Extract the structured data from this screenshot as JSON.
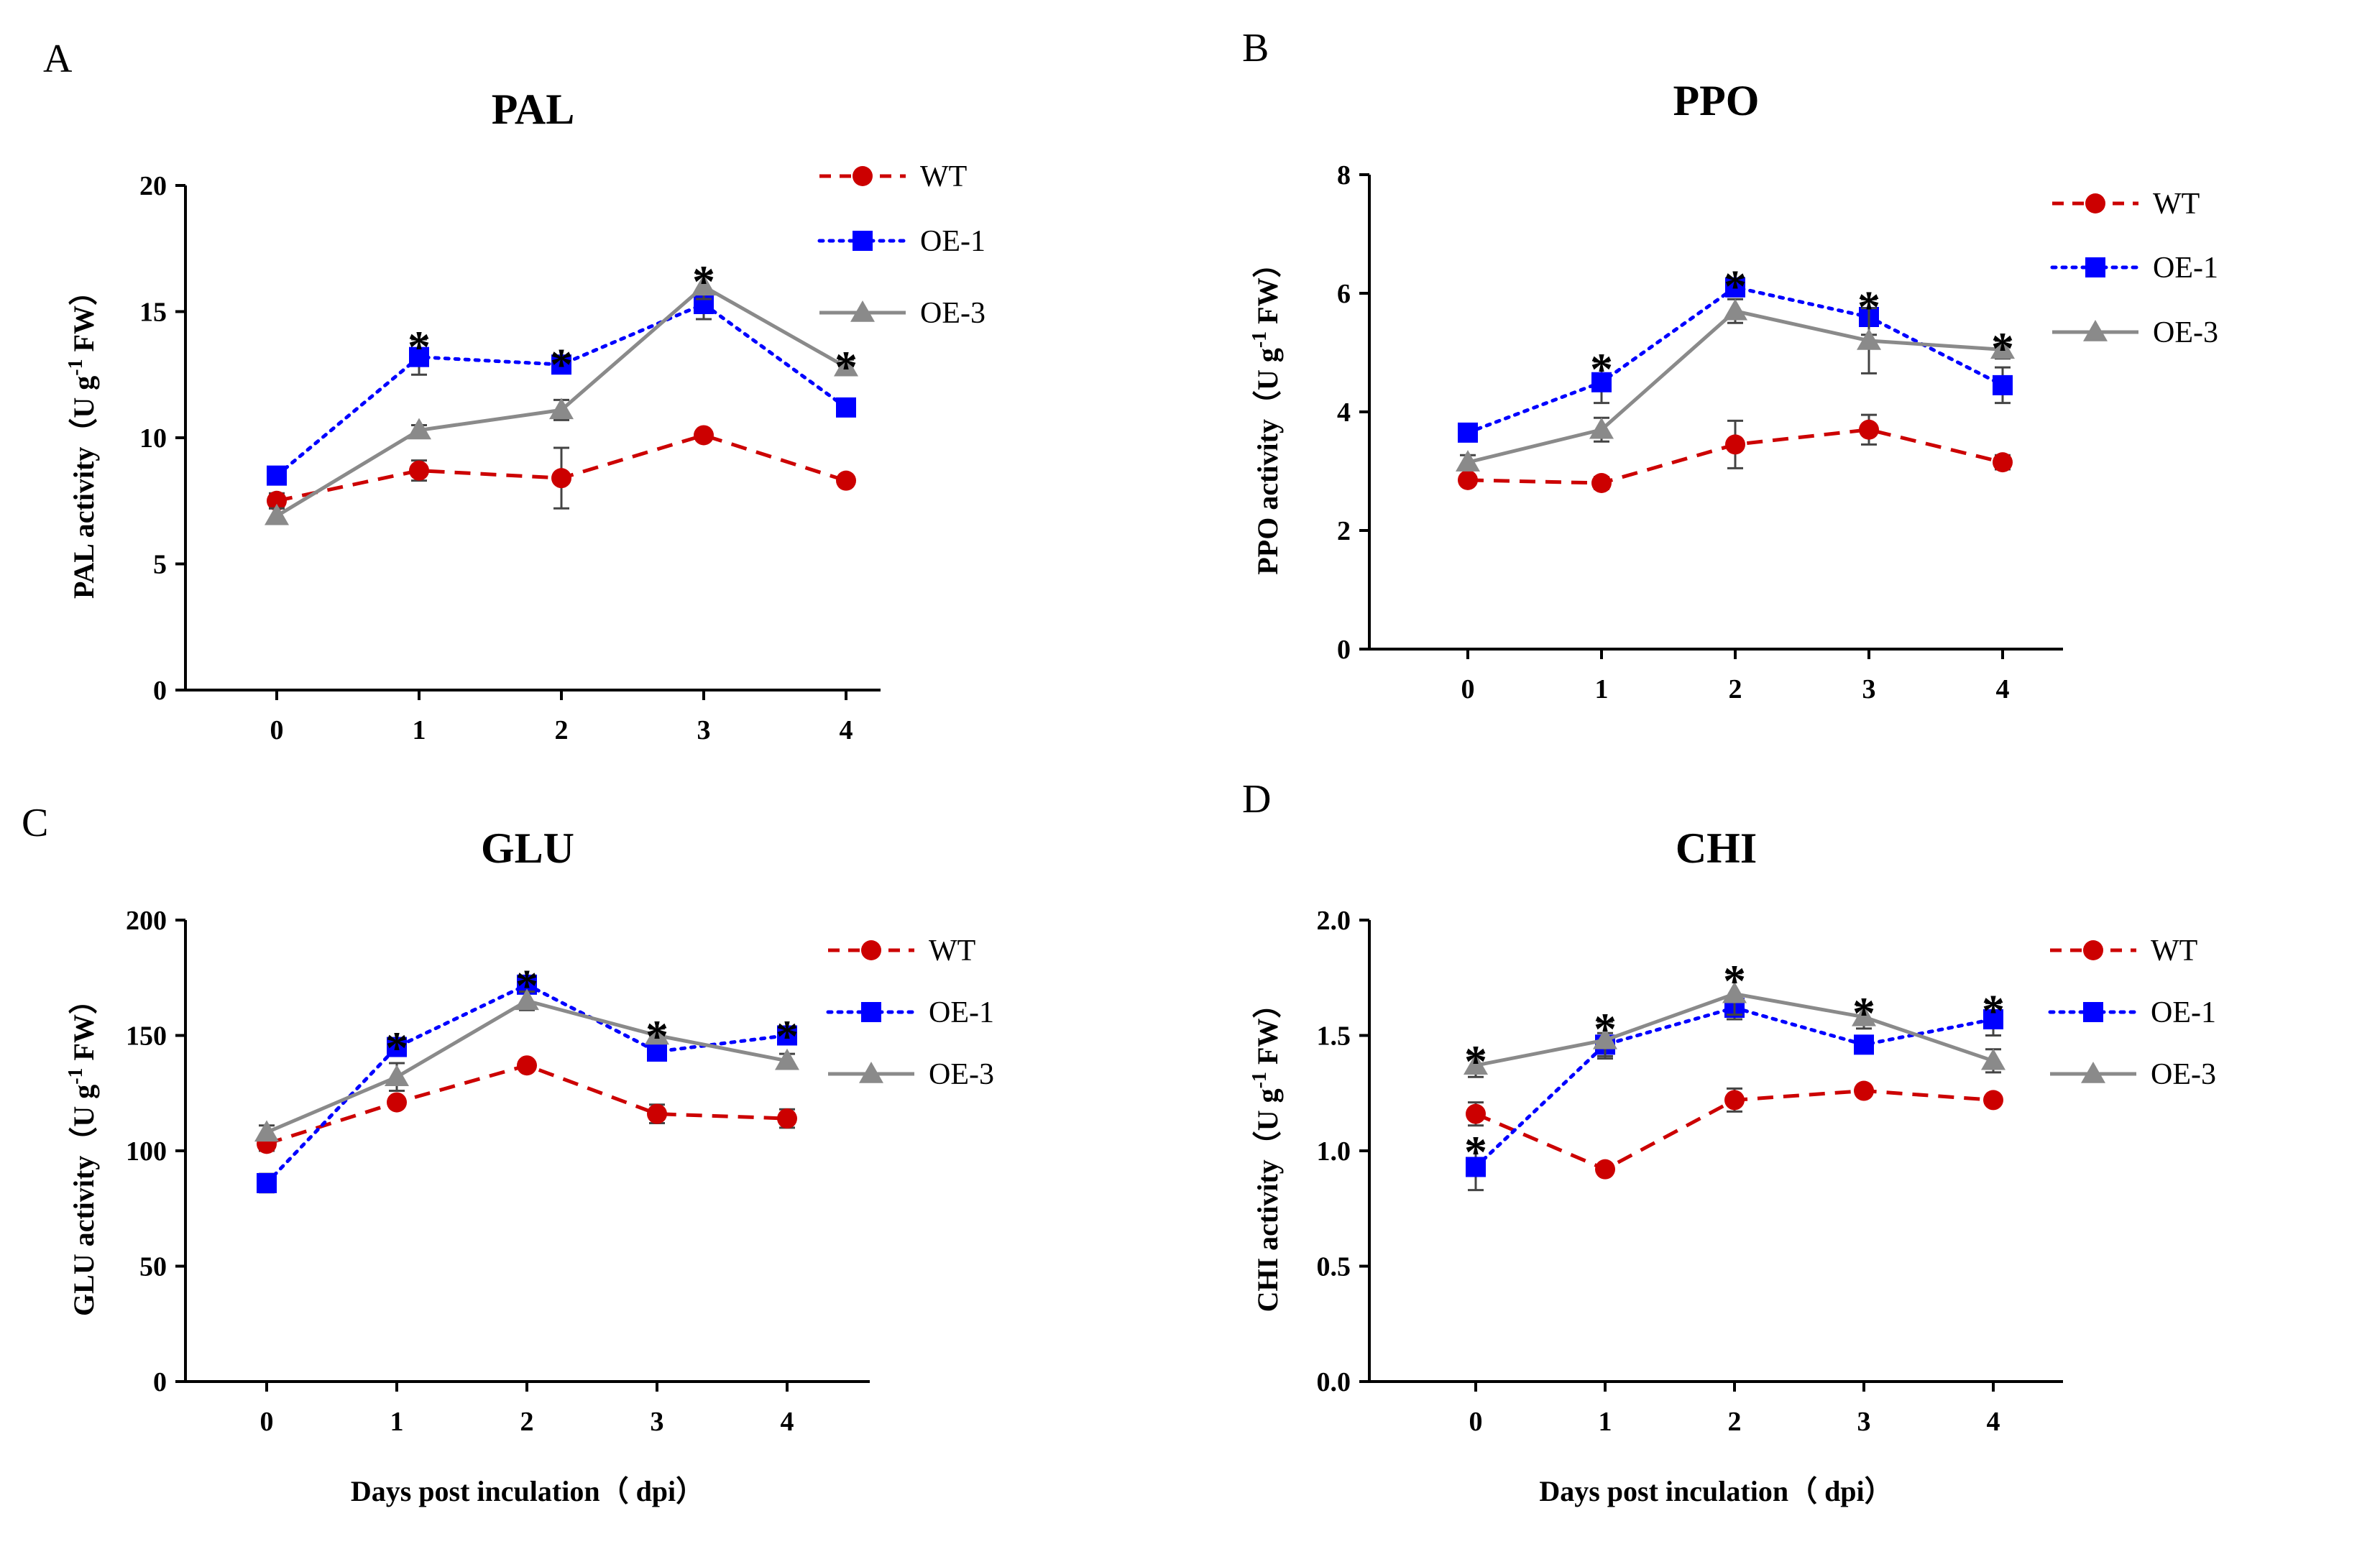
{
  "figure": {
    "xlabel_shared": "Days post inculation（ dpi）"
  },
  "chart_data": [
    {
      "id": "A",
      "type": "line",
      "panel_letter": "A",
      "title": "PAL",
      "ylabel": "PAL activity（U g",
      "ylabel_sup": "-1",
      "ylabel_tail": " FW）",
      "xlabel": "",
      "categories": [
        "0",
        "1",
        "2",
        "3",
        "4"
      ],
      "ylim": [
        0,
        20
      ],
      "yticks": [
        0,
        5,
        10,
        15,
        20
      ],
      "ytick_labels": [
        "0",
        "5",
        "10",
        "15",
        "20"
      ],
      "series": [
        {
          "name": "WT",
          "color": "#cc0000",
          "marker": "circle",
          "dash": "dashed",
          "values": [
            7.5,
            8.7,
            8.4,
            10.1,
            8.3
          ],
          "err": [
            0.3,
            0.4,
            1.2,
            0.2,
            0.2
          ]
        },
        {
          "name": "OE-1",
          "color": "#0000ff",
          "marker": "square",
          "dash": "dotted",
          "values": [
            8.5,
            13.2,
            12.9,
            15.3,
            11.2
          ],
          "err": [
            0.2,
            0.7,
            0.3,
            0.6,
            0.3
          ]
        },
        {
          "name": "OE-3",
          "color": "#8a8a8a",
          "marker": "triangle",
          "dash": "solid",
          "values": [
            6.9,
            10.3,
            11.1,
            16.0,
            12.8
          ],
          "err": [
            0.3,
            0.2,
            0.4,
            0.5,
            0.3
          ]
        }
      ],
      "significance": [
        {
          "x": 1,
          "label": "*"
        },
        {
          "x": 2,
          "label": "*"
        },
        {
          "x": 3,
          "label": "*"
        },
        {
          "x": 4,
          "label": "*"
        }
      ],
      "legend": "right"
    },
    {
      "id": "B",
      "type": "line",
      "panel_letter": "B",
      "title": "PPO",
      "ylabel": "PPO activity（U g",
      "ylabel_sup": "-1",
      "ylabel_tail": " FW）",
      "xlabel": "",
      "categories": [
        "0",
        "1",
        "2",
        "3",
        "4"
      ],
      "ylim": [
        0,
        8
      ],
      "yticks": [
        0,
        2,
        4,
        6,
        8
      ],
      "ytick_labels": [
        "0",
        "2",
        "4",
        "6",
        "8"
      ],
      "series": [
        {
          "name": "WT",
          "color": "#cc0000",
          "marker": "circle",
          "dash": "dashed",
          "values": [
            2.85,
            2.8,
            3.45,
            3.7,
            3.15
          ],
          "err": [
            0.08,
            0.1,
            0.4,
            0.25,
            0.12
          ]
        },
        {
          "name": "OE-1",
          "color": "#0000ff",
          "marker": "square",
          "dash": "dotted",
          "values": [
            3.65,
            4.5,
            6.1,
            5.6,
            4.45
          ],
          "err": [
            0.12,
            0.35,
            0.15,
            0.3,
            0.3
          ]
        },
        {
          "name": "OE-3",
          "color": "#8a8a8a",
          "marker": "triangle",
          "dash": "solid",
          "values": [
            3.15,
            3.7,
            5.7,
            5.2,
            5.05
          ],
          "err": [
            0.12,
            0.2,
            0.2,
            0.55,
            0.15
          ]
        }
      ],
      "significance": [
        {
          "x": 1,
          "label": "*"
        },
        {
          "x": 2,
          "label": "*"
        },
        {
          "x": 3,
          "label": "*"
        },
        {
          "x": 4,
          "label": "*"
        }
      ],
      "legend": "right"
    },
    {
      "id": "C",
      "type": "line",
      "panel_letter": "C",
      "title": "GLU",
      "ylabel": "GLU activity（U g",
      "ylabel_sup": "-1",
      "ylabel_tail": " FW）",
      "xlabel": "Days post inculation（ dpi）",
      "categories": [
        "0",
        "1",
        "2",
        "3",
        "4"
      ],
      "ylim": [
        0,
        200
      ],
      "yticks": [
        0,
        50,
        100,
        150,
        200
      ],
      "ytick_labels": [
        "0",
        "50",
        "100",
        "150",
        "200"
      ],
      "series": [
        {
          "name": "WT",
          "color": "#cc0000",
          "marker": "circle",
          "dash": "dashed",
          "values": [
            103,
            121,
            137,
            116,
            114
          ],
          "err": [
            3,
            2,
            2,
            4,
            4
          ]
        },
        {
          "name": "OE-1",
          "color": "#0000ff",
          "marker": "square",
          "dash": "dotted",
          "values": [
            86,
            145,
            172,
            143,
            150
          ],
          "err": [
            4,
            3,
            3,
            3,
            3
          ]
        },
        {
          "name": "OE-3",
          "color": "#8a8a8a",
          "marker": "triangle",
          "dash": "solid",
          "values": [
            108,
            132,
            165,
            150,
            139
          ],
          "err": [
            3,
            6,
            4,
            3,
            3
          ]
        }
      ],
      "significance": [
        {
          "x": 1,
          "label": "*"
        },
        {
          "x": 2,
          "label": "*"
        },
        {
          "x": 3,
          "label": "*"
        },
        {
          "x": 4,
          "label": "*"
        }
      ],
      "legend": "right"
    },
    {
      "id": "D",
      "type": "line",
      "panel_letter": "D",
      "title": "CHI",
      "ylabel": "CHI activity（U g",
      "ylabel_sup": "-1",
      "ylabel_tail": " FW）",
      "xlabel": "Days post inculation（ dpi）",
      "categories": [
        "0",
        "1",
        "2",
        "3",
        "4"
      ],
      "ylim": [
        0,
        2.0
      ],
      "yticks": [
        0,
        0.5,
        1.0,
        1.5,
        2.0
      ],
      "ytick_labels": [
        "0.0",
        "0.5",
        "1.0",
        "1.5",
        "2.0"
      ],
      "series": [
        {
          "name": "WT",
          "color": "#cc0000",
          "marker": "circle",
          "dash": "dashed",
          "values": [
            1.16,
            0.92,
            1.22,
            1.26,
            1.22
          ],
          "err": [
            0.05,
            0.02,
            0.05,
            0.02,
            0.02
          ]
        },
        {
          "name": "OE-1",
          "color": "#0000ff",
          "marker": "square",
          "dash": "dotted",
          "values": [
            0.93,
            1.46,
            1.62,
            1.46,
            1.57
          ],
          "err": [
            0.1,
            0.05,
            0.05,
            0.03,
            0.07
          ]
        },
        {
          "name": "OE-3",
          "color": "#8a8a8a",
          "marker": "triangle",
          "dash": "solid",
          "values": [
            1.37,
            1.48,
            1.68,
            1.58,
            1.39
          ],
          "err": [
            0.05,
            0.08,
            0.09,
            0.05,
            0.05
          ]
        }
      ],
      "significance": [
        {
          "x": 0,
          "label": "*"
        },
        {
          "x": 0,
          "label": "*"
        },
        {
          "x": 1,
          "label": "*"
        },
        {
          "x": 2,
          "label": "*"
        },
        {
          "x": 3,
          "label": "*"
        },
        {
          "x": 4,
          "label": "*"
        }
      ],
      "legend": "right"
    }
  ]
}
